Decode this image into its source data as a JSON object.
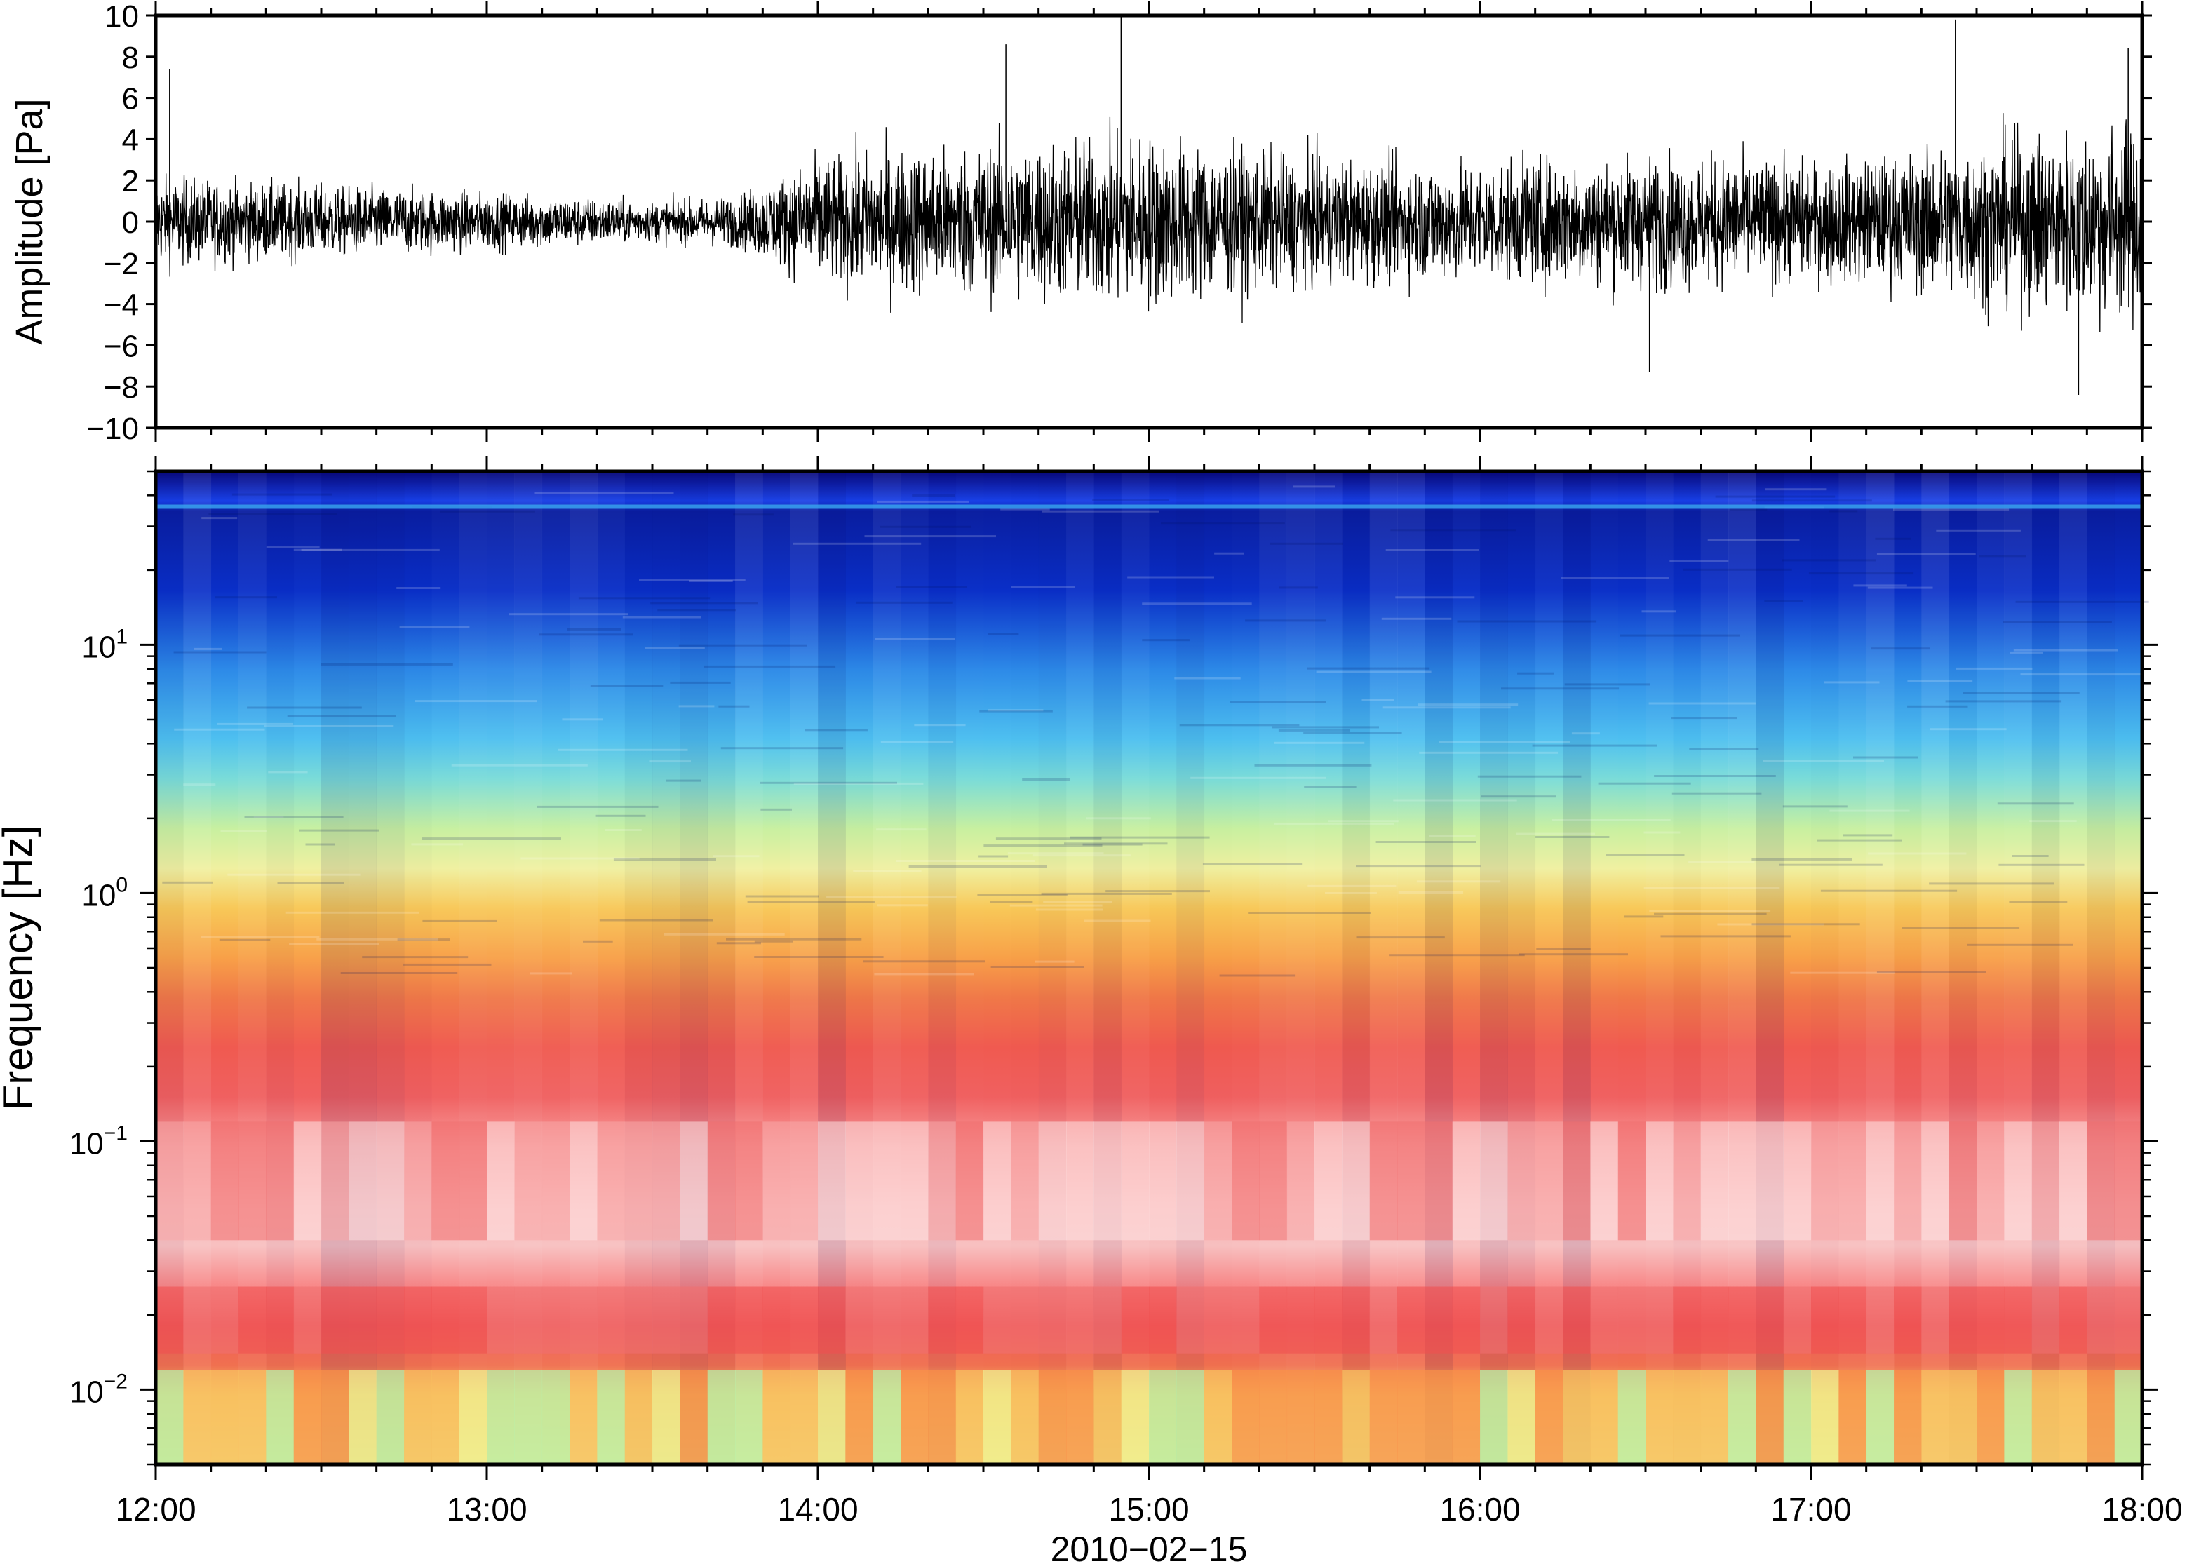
{
  "chart_data": [
    {
      "type": "line",
      "ylabel": "Amplitude [Pa]",
      "ylim": [
        -10,
        10
      ],
      "y_ticks": [
        "10",
        "8",
        "6",
        "4",
        "2",
        "0",
        "−2",
        "−4",
        "−6",
        "−8",
        "−10"
      ],
      "y_tick_values": [
        10,
        8,
        6,
        4,
        2,
        0,
        -2,
        -4,
        -6,
        -8,
        -10
      ],
      "xlim": [
        "2010-02-15 12:00",
        "2010-02-15 18:00"
      ],
      "series": [
        {
          "color": "#000000",
          "envelope_time": [
            "12:00",
            "12:15",
            "12:30",
            "12:45",
            "13:00",
            "13:15",
            "13:30",
            "13:45",
            "14:00",
            "14:15",
            "14:30",
            "14:45",
            "15:00",
            "15:15",
            "15:30",
            "15:45",
            "16:00",
            "16:15",
            "16:30",
            "16:45",
            "17:00",
            "17:15",
            "17:30",
            "17:45",
            "18:00"
          ],
          "envelope_pa": [
            2.5,
            2.2,
            2.0,
            1.8,
            1.6,
            1.4,
            1.1,
            1.4,
            3.5,
            4.0,
            4.2,
            4.5,
            4.8,
            4.0,
            3.5,
            3.3,
            3.3,
            3.5,
            3.6,
            3.5,
            3.3,
            3.6,
            4.5,
            5.0,
            5.5
          ],
          "peaks_pa": [
            7.4,
            8.6,
            10.0,
            9.8,
            8.4,
            -7.3,
            -8.4
          ]
        }
      ]
    },
    {
      "type": "heatmap",
      "ylabel": "Frequency [Hz]",
      "xlabel": "2010−02−15",
      "y_scale": "log",
      "ylim": [
        0.005,
        50
      ],
      "y_ticks": [
        {
          "base": "10",
          "exp": "1",
          "value": 10
        },
        {
          "base": "10",
          "exp": "0",
          "value": 1
        },
        {
          "base": "10",
          "exp": "−1",
          "value": 0.1
        },
        {
          "base": "10",
          "exp": "−2",
          "value": 0.01
        }
      ],
      "x_ticks": [
        "12:00",
        "13:00",
        "14:00",
        "15:00",
        "16:00",
        "17:00",
        "18:00"
      ],
      "x_tick_hours": [
        12,
        13,
        14,
        15,
        16,
        17,
        18
      ],
      "colormap": [
        "#08087a",
        "#0a2fc8",
        "#1f6fe8",
        "#3ea8f0",
        "#6fd8e0",
        "#b2f0a0",
        "#f0f0a0",
        "#f8c050",
        "#f88a40",
        "#f05a50",
        "#f89090",
        "#fad0d0",
        "#ffe8e8"
      ],
      "colormap_note": "dark blue (low power) at high frequency, red/pink at 0.03-0.3 Hz, yellow/green at lowest frequencies"
    }
  ]
}
